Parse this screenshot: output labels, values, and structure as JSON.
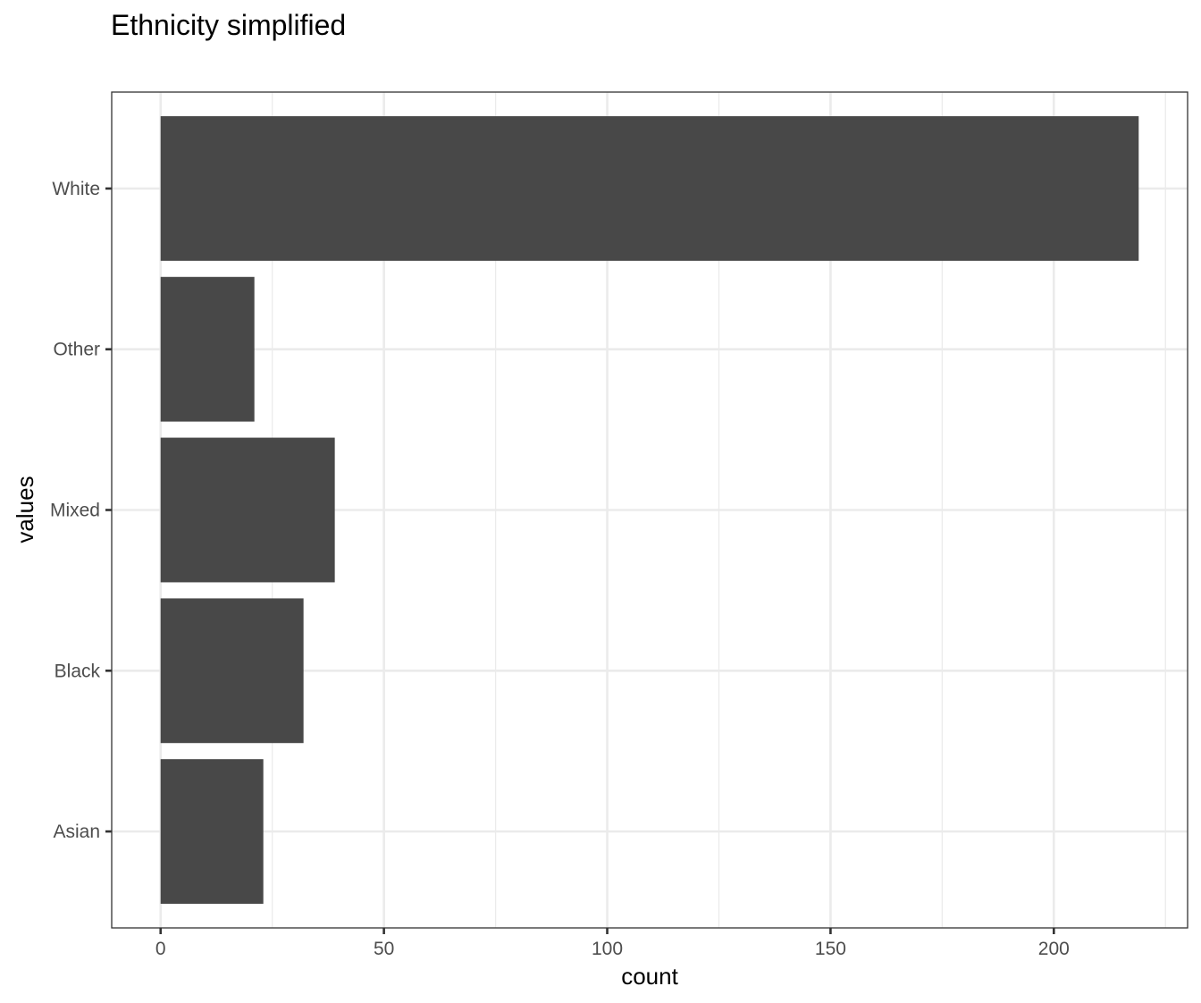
{
  "chart_data": {
    "type": "bar",
    "orientation": "horizontal",
    "title": "Ethnicity simplified",
    "xlabel": "count",
    "ylabel": "values",
    "categories": [
      "Asian",
      "Black",
      "Mixed",
      "Other",
      "White"
    ],
    "values": [
      23,
      32,
      39,
      21,
      219
    ],
    "xlim": [
      -10.95,
      229.95
    ],
    "xticks": [
      0,
      50,
      100,
      150,
      200
    ],
    "xticks_minor": [
      25,
      75,
      125,
      175,
      225
    ],
    "grid": true,
    "legend": "none",
    "colors": {
      "bar": "#484848",
      "grid": "#ebebeb",
      "panel_border": "#333333",
      "tick_text": "#4d4d4d"
    }
  }
}
